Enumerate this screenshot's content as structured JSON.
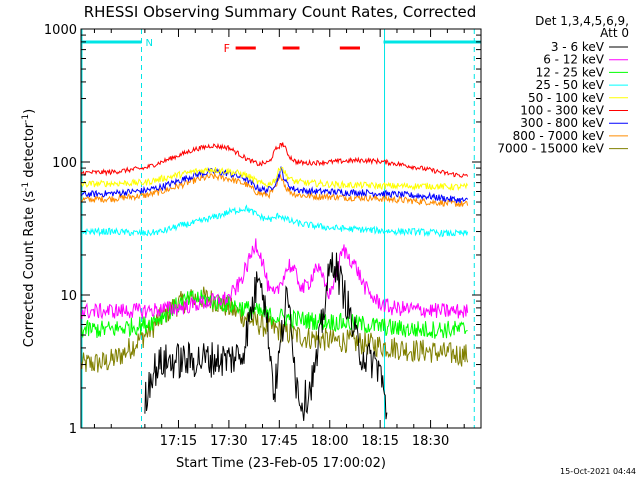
{
  "chart_data": {
    "type": "line",
    "title": "RHESSI Observing Summary Count Rates, Corrected",
    "xlabel": "Start Time (23-Feb-05 17:00:02)",
    "ylabel": "Corrected Count Rate (s⁻¹ detector⁻¹)",
    "ylabel_parts": [
      "Corrected Count Rate (s",
      "-1",
      " detector",
      "-1",
      ")"
    ],
    "yscale": "log",
    "ylim": [
      1,
      1000
    ],
    "xlim": [
      -14,
      105
    ],
    "x_unit": "minutes after 17:00",
    "x_ticks": [
      {
        "value": 15,
        "label": "17:15"
      },
      {
        "value": 30,
        "label": "17:30"
      },
      {
        "value": 45,
        "label": "17:45"
      },
      {
        "value": 60,
        "label": "18:00"
      },
      {
        "value": 75,
        "label": "18:15"
      },
      {
        "value": 90,
        "label": "18:30"
      }
    ],
    "y_ticks": [
      {
        "value": 1,
        "label": "1"
      },
      {
        "value": 10,
        "label": "10"
      },
      {
        "value": 100,
        "label": "100"
      },
      {
        "value": 1000,
        "label": "1000"
      }
    ],
    "legend_header": [
      "Det 1,3,4,5,6,9,",
      "Att 0"
    ],
    "legend_position": "right",
    "timestamp": "15-Oct-2021 04:44",
    "night_markers": {
      "label": "N",
      "color": "#00e5e5",
      "bars": [
        [
          -14,
          4
        ],
        [
          76,
          105
        ]
      ],
      "dashed_boundaries": [
        4,
        103
      ],
      "solid_boundaries": [
        -14,
        76
      ]
    },
    "flare_markers": {
      "label": "F",
      "color": "#ff0000",
      "segments": [
        [
          32,
          38
        ],
        [
          46,
          51
        ],
        [
          63,
          69
        ]
      ]
    },
    "series": [
      {
        "name": "3 - 6 keV",
        "color": "#000000",
        "x": [
          5,
          7,
          10,
          14,
          18,
          22,
          26,
          30,
          34,
          38,
          39,
          40,
          42,
          43.5,
          45,
          47,
          48.5,
          50,
          52,
          54,
          56,
          58,
          59,
          61,
          63,
          65,
          67,
          69,
          71,
          73,
          75,
          77
        ],
        "y": [
          1.6,
          2.6,
          3.1,
          3.2,
          3.2,
          3.3,
          3.3,
          3.3,
          3.6,
          11,
          17,
          12,
          4.5,
          1.8,
          3.5,
          9,
          7,
          2.2,
          1.5,
          2,
          3,
          7,
          11,
          19,
          13,
          9,
          5.5,
          3.8,
          3.3,
          3.2,
          2.8,
          1.2
        ]
      },
      {
        "name": "6 - 12 keV",
        "color": "#ff00ff",
        "x": [
          -14,
          -5,
          5,
          10,
          15,
          20,
          25,
          30,
          33,
          36,
          38,
          40,
          42,
          44,
          46,
          48,
          50,
          52,
          54,
          56,
          58,
          60,
          62,
          64,
          66,
          68,
          70,
          72,
          74,
          78,
          85,
          92,
          101
        ],
        "y": [
          7.5,
          7.6,
          7.6,
          7.8,
          8,
          8.5,
          9,
          9.5,
          12,
          18,
          25,
          18,
          10.5,
          10,
          13.5,
          17,
          14,
          11,
          12.5,
          17,
          13,
          10,
          15,
          22,
          19,
          16,
          12,
          10,
          9,
          8,
          7.8,
          7.6,
          7.5
        ]
      },
      {
        "name": "12 - 25 keV",
        "color": "#00ff00",
        "x": [
          -14,
          -5,
          5,
          8,
          12,
          16,
          20,
          25,
          30,
          34,
          38,
          42,
          46,
          50,
          55,
          60,
          65,
          70,
          75,
          80,
          85,
          90,
          95,
          101
        ],
        "y": [
          5.5,
          5.5,
          6,
          6.5,
          7.5,
          8.8,
          9.5,
          9,
          8.5,
          8,
          7.5,
          7,
          6.8,
          6.6,
          6.4,
          6.3,
          6.2,
          6,
          5.8,
          5.6,
          5.5,
          5.5,
          5.5,
          5.5
        ]
      },
      {
        "name": "25 - 50 keV",
        "color": "#00ffff",
        "x": [
          -14,
          -5,
          5,
          10,
          15,
          20,
          25,
          30,
          35,
          37,
          40,
          43,
          45,
          48,
          52,
          56,
          60,
          65,
          70,
          75,
          80,
          85,
          90,
          95,
          101
        ],
        "y": [
          30,
          30,
          29,
          30,
          33,
          35,
          38,
          42,
          45,
          42,
          38,
          37,
          40,
          36,
          34,
          33,
          32,
          31.5,
          31,
          30.5,
          30,
          30,
          29.5,
          29,
          29
        ]
      },
      {
        "name": "50 - 100 keV",
        "color": "#ffff00",
        "x": [
          -14,
          -5,
          5,
          10,
          15,
          20,
          25,
          30,
          35,
          38,
          40,
          42,
          44,
          45.5,
          47,
          49,
          52,
          56,
          60,
          65,
          70,
          75,
          80,
          85,
          90,
          95,
          101
        ],
        "y": [
          68,
          69,
          70,
          75,
          80,
          85,
          88,
          85,
          80,
          72,
          68,
          68,
          75,
          95,
          80,
          72,
          70,
          69,
          68,
          67,
          67,
          66,
          66,
          66,
          66,
          65,
          65
        ]
      },
      {
        "name": "100 - 300 keV",
        "color": "#ff0000",
        "x": [
          -14,
          -5,
          5,
          10,
          15,
          20,
          25,
          30,
          33,
          36,
          39,
          42,
          44,
          46,
          48,
          50,
          53,
          56,
          60,
          65,
          70,
          75,
          80,
          85,
          90,
          95,
          101
        ],
        "y": [
          83,
          84,
          90,
          100,
          112,
          125,
          133,
          128,
          115,
          103,
          96,
          100,
          125,
          138,
          110,
          100,
          98,
          99,
          100,
          102,
          103,
          101,
          97,
          92,
          87,
          82,
          78
        ]
      },
      {
        "name": "300 - 800 keV",
        "color": "#0000ff",
        "x": [
          -14,
          -5,
          5,
          10,
          15,
          20,
          25,
          30,
          35,
          38,
          40,
          42,
          44,
          45.5,
          47,
          49,
          52,
          56,
          60,
          65,
          70,
          75,
          80,
          85,
          90,
          95,
          101
        ],
        "y": [
          57,
          58,
          61,
          65,
          72,
          80,
          85,
          82,
          75,
          65,
          62,
          62,
          70,
          88,
          70,
          63,
          61,
          60,
          60,
          59,
          59,
          58,
          57,
          56,
          55,
          53,
          51
        ]
      },
      {
        "name": "800 - 7000 keV",
        "color": "#ff8c00",
        "x": [
          -14,
          -5,
          5,
          10,
          15,
          20,
          25,
          30,
          35,
          38,
          40,
          42,
          44,
          45.5,
          47,
          49,
          52,
          56,
          60,
          65,
          70,
          75,
          80,
          85,
          90,
          95,
          101
        ],
        "y": [
          52,
          53,
          56,
          60,
          66,
          73,
          78,
          75,
          68,
          60,
          57,
          57,
          64,
          80,
          64,
          58,
          56,
          55,
          55,
          54,
          54,
          53,
          52,
          51,
          50,
          49,
          48
        ]
      },
      {
        "name": "7000 - 15000 keV",
        "color": "#808000",
        "x": [
          -14,
          -7,
          -4,
          -1,
          2,
          5,
          8,
          11,
          14,
          17,
          20,
          23,
          26,
          29,
          32,
          35,
          38,
          41,
          44,
          47,
          50,
          53,
          56,
          59,
          62,
          65,
          68,
          71,
          74,
          77,
          80,
          83,
          86,
          89,
          92,
          95,
          98,
          101
        ],
        "y": [
          3,
          3.1,
          3.3,
          3.7,
          4.3,
          5,
          6,
          7.2,
          8.3,
          9,
          9.5,
          9.5,
          9,
          8.3,
          7.5,
          6.8,
          6.2,
          5.8,
          5.5,
          5.2,
          5,
          4.8,
          4.7,
          4.6,
          4.5,
          4.5,
          4.4,
          4.3,
          4.2,
          4.1,
          4,
          3.9,
          3.8,
          3.8,
          3.7,
          3.6,
          3.6,
          3.5
        ]
      }
    ]
  }
}
